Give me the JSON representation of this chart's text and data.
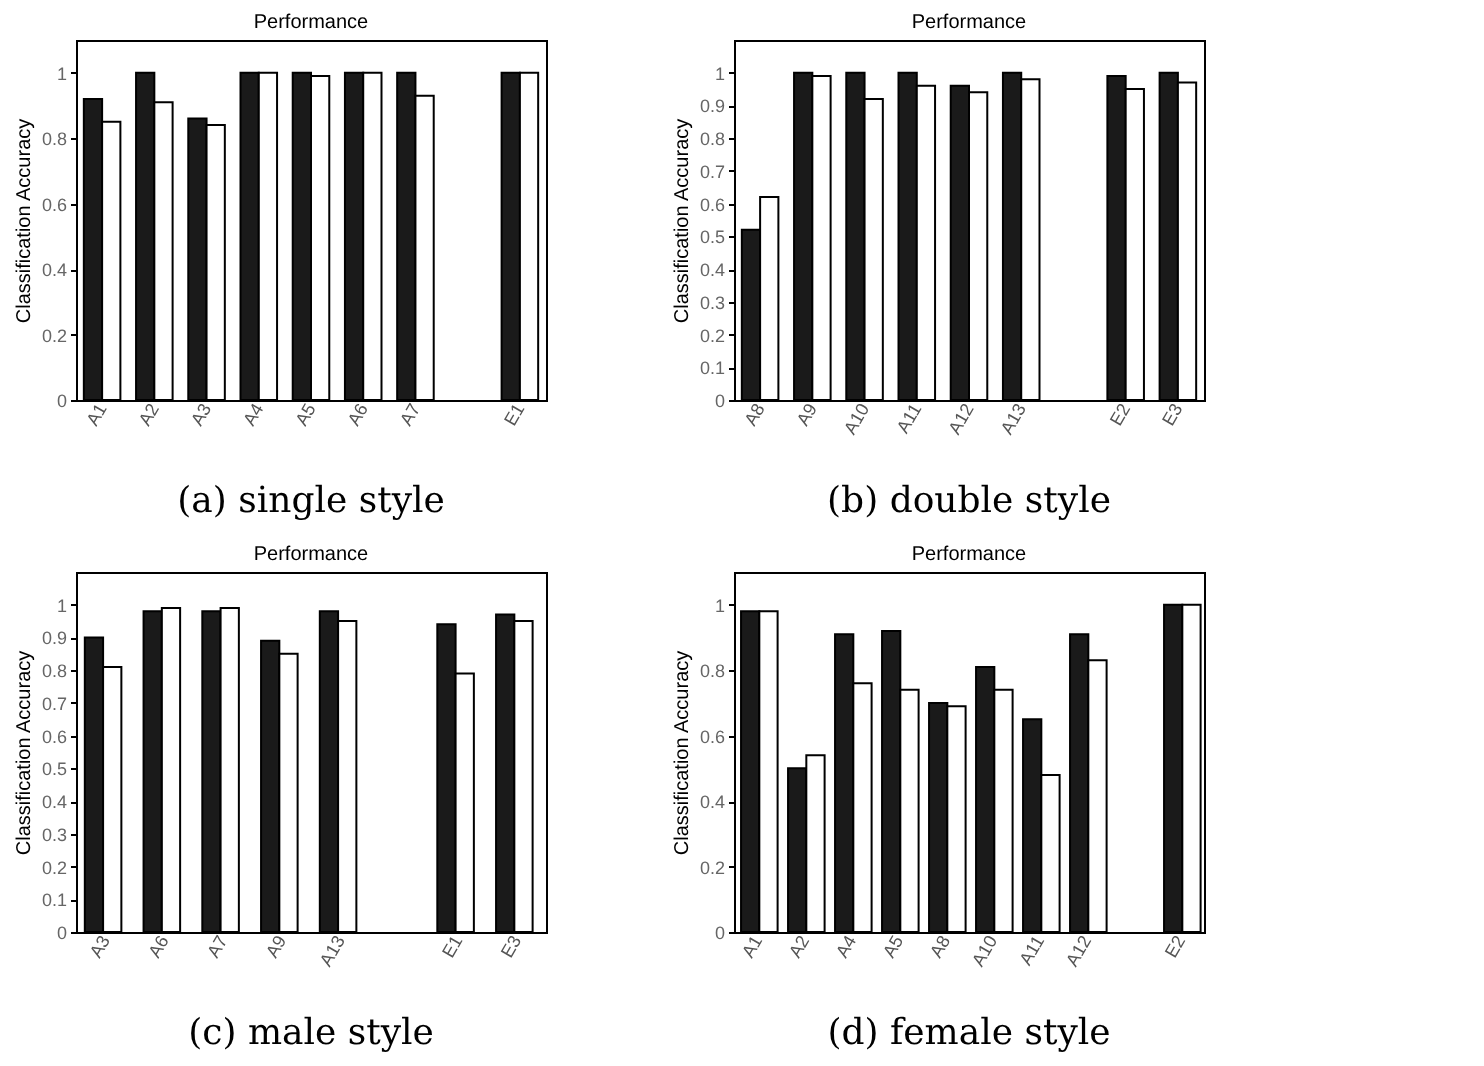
{
  "chart_data": [
    {
      "type": "bar",
      "title": "Performance",
      "ylabel": "Classification Accuracy",
      "categories": [
        "A1",
        "A2",
        "A3",
        "A4",
        "A5",
        "A6",
        "A7",
        null,
        "E1"
      ],
      "series": [
        {
          "color": "#1a1a1a",
          "values": [
            0.92,
            1.0,
            0.86,
            1.0,
            1.0,
            1.0,
            1.0,
            0,
            1.0
          ]
        },
        {
          "color": "#ffffff",
          "values": [
            0.85,
            0.91,
            0.84,
            1.0,
            0.99,
            1.0,
            0.93,
            0,
            1.0
          ]
        }
      ],
      "ylim": [
        0,
        1.1
      ],
      "yticks": [
        0,
        0.2,
        0.4,
        0.6,
        0.8,
        1
      ],
      "grid": false,
      "legend": false,
      "annotations": [
        "(a) single style"
      ]
    },
    {
      "type": "bar",
      "title": "Performance",
      "ylabel": "Classification Accuracy",
      "categories": [
        "A8",
        "A9",
        "A10",
        "A11",
        "A12",
        "A13",
        null,
        "E2",
        "E3"
      ],
      "series": [
        {
          "color": "#1a1a1a",
          "values": [
            0.52,
            1.0,
            1.0,
            1.0,
            0.96,
            1.0,
            0,
            0.99,
            1.0
          ]
        },
        {
          "color": "#ffffff",
          "values": [
            0.62,
            0.99,
            0.92,
            0.96,
            0.94,
            0.98,
            0,
            0.95,
            0.97
          ]
        }
      ],
      "ylim": [
        0,
        1.1
      ],
      "yticks": [
        0,
        0.1,
        0.2,
        0.3,
        0.4,
        0.5,
        0.6,
        0.7,
        0.8,
        0.9,
        1
      ],
      "grid": false,
      "legend": false,
      "annotations": [
        "(b) double style"
      ]
    },
    {
      "type": "bar",
      "title": "Performance",
      "ylabel": "Classification Accuracy",
      "categories": [
        "A3",
        "A6",
        "A7",
        "A9",
        "A13",
        null,
        "E1",
        "E3"
      ],
      "series": [
        {
          "color": "#1a1a1a",
          "values": [
            0.9,
            0.98,
            0.98,
            0.89,
            0.98,
            0,
            0.94,
            0.97
          ]
        },
        {
          "color": "#ffffff",
          "values": [
            0.81,
            0.99,
            0.99,
            0.85,
            0.95,
            0,
            0.79,
            0.95
          ]
        }
      ],
      "ylim": [
        0,
        1.1
      ],
      "yticks": [
        0,
        0.1,
        0.2,
        0.3,
        0.4,
        0.5,
        0.6,
        0.7,
        0.8,
        0.9,
        1
      ],
      "grid": false,
      "legend": false,
      "annotations": [
        "(c) male style"
      ]
    },
    {
      "type": "bar",
      "title": "Performance",
      "ylabel": "Classification Accuracy",
      "categories": [
        "A1",
        "A2",
        "A4",
        "A5",
        "A8",
        "A10",
        "A11",
        "A12",
        null,
        "E2"
      ],
      "series": [
        {
          "color": "#1a1a1a",
          "values": [
            0.98,
            0.5,
            0.91,
            0.92,
            0.7,
            0.81,
            0.65,
            0.91,
            0,
            1.0
          ]
        },
        {
          "color": "#ffffff",
          "values": [
            0.98,
            0.54,
            0.76,
            0.74,
            0.69,
            0.74,
            0.48,
            0.83,
            0,
            1.0
          ]
        }
      ],
      "ylim": [
        0,
        1.1
      ],
      "yticks": [
        0,
        0.2,
        0.4,
        0.6,
        0.8,
        1
      ],
      "grid": false,
      "legend": false,
      "annotations": [
        "(d) female style"
      ]
    }
  ]
}
